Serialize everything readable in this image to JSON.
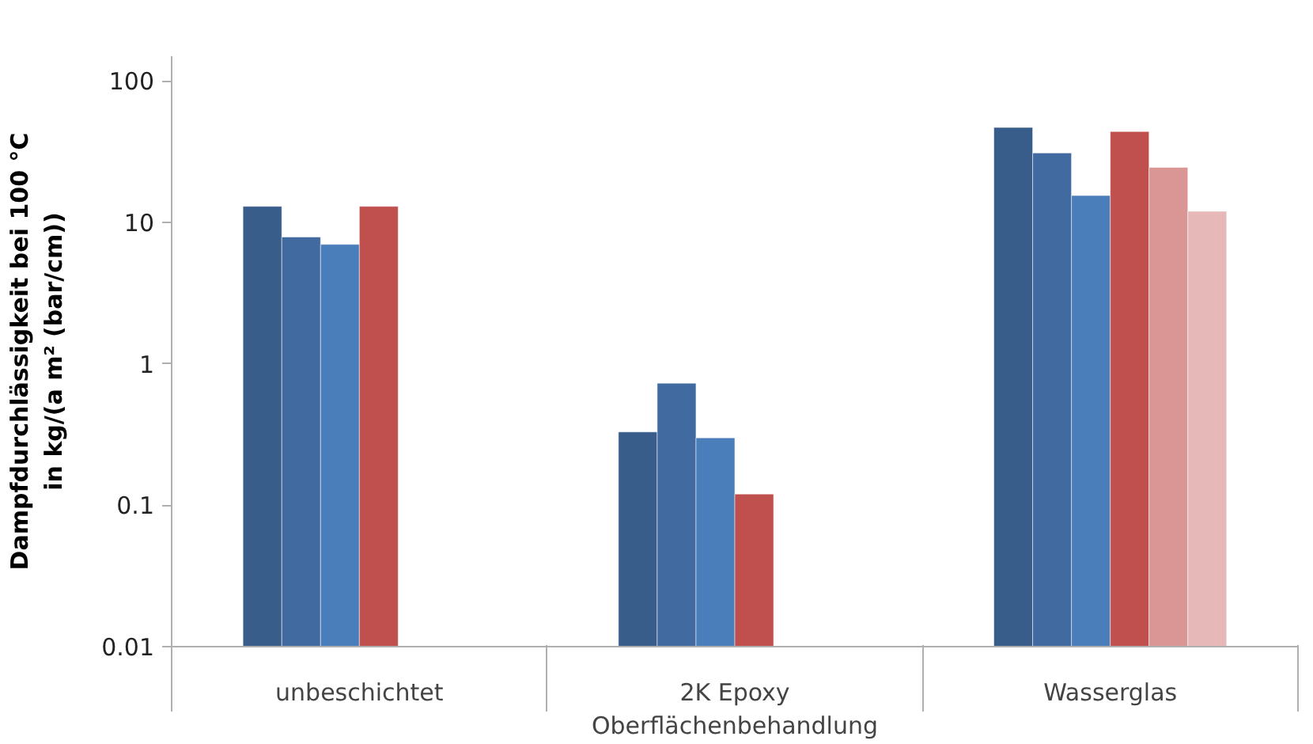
{
  "chart_data": {
    "type": "bar",
    "xlabel": "Oberflächenbehandlung",
    "ylabel": "Dampfdurchlässigkeit bei 100 °C\nin kg/(a m² (bar/cm))",
    "categories": [
      "unbeschichtet",
      "2K Epoxy",
      "Wasserglas"
    ],
    "series": [
      {
        "color": "#385d8a",
        "values": [
          13,
          0.33,
          47
        ]
      },
      {
        "color": "#416ba0",
        "values": [
          7.9,
          0.73,
          31
        ]
      },
      {
        "color": "#4a7ebb",
        "values": [
          7.0,
          0.3,
          15.5
        ]
      },
      {
        "color": "#c0504d",
        "values": [
          13,
          0.12,
          44
        ]
      },
      {
        "color": "#d99694",
        "values": [
          null,
          null,
          24.5
        ]
      },
      {
        "color": "#e6b9b8",
        "values": [
          null,
          null,
          12
        ]
      }
    ],
    "log": true,
    "ylim": [
      0.01,
      150
    ],
    "yticks": [
      0.01,
      0.1,
      1,
      10,
      100
    ],
    "grid": false
  }
}
